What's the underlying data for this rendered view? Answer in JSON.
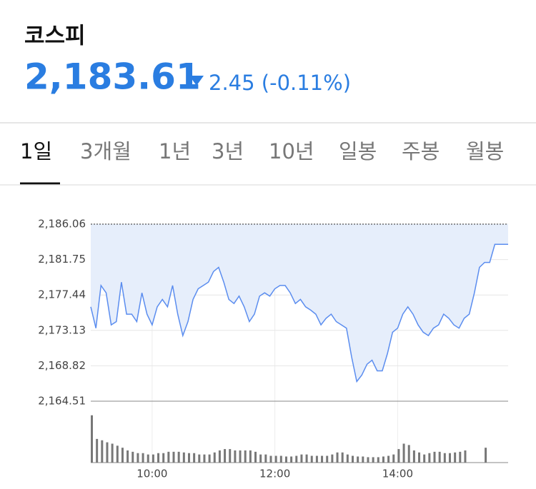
{
  "header": {
    "title": "코스피",
    "price": "2,183.61",
    "change": "2.45 (-0.11%)"
  },
  "tabs": [
    "1일",
    "3개월",
    "1년",
    "3년",
    "10년",
    "일봉",
    "주봉",
    "월봉"
  ],
  "chart_data": [
    {
      "type": "line",
      "x": [
        "09:00",
        "09:05",
        "09:10",
        "09:15",
        "09:20",
        "09:25",
        "09:30",
        "09:35",
        "09:40",
        "09:45",
        "09:50",
        "09:55",
        "10:00",
        "10:05",
        "10:10",
        "10:15",
        "10:20",
        "10:25",
        "10:30",
        "10:35",
        "10:40",
        "10:45",
        "10:50",
        "10:55",
        "11:00",
        "11:05",
        "11:10",
        "11:15",
        "11:20",
        "11:25",
        "11:30",
        "11:35",
        "11:40",
        "11:45",
        "11:50",
        "11:55",
        "12:00",
        "12:05",
        "12:10",
        "12:15",
        "12:20",
        "12:25",
        "12:30",
        "12:35",
        "12:40",
        "12:45",
        "12:50",
        "12:55",
        "13:00",
        "13:05",
        "13:10",
        "13:15",
        "13:20",
        "13:25",
        "13:30",
        "13:35",
        "13:40",
        "13:45",
        "13:50",
        "13:55",
        "14:00",
        "14:05",
        "14:10",
        "14:15",
        "14:20",
        "14:25",
        "14:30",
        "14:35",
        "14:40",
        "14:45",
        "14:50",
        "14:55",
        "15:00",
        "15:05",
        "15:10",
        "15:15",
        "15:20",
        "15:25",
        "15:30",
        "15:35",
        "15:40",
        "15:45",
        "15:48"
      ],
      "series": [
        {
          "color": "#5b8def",
          "values": [
            2176.0,
            2173.4,
            2178.6,
            2177.7,
            2173.8,
            2174.2,
            2179.0,
            2175.1,
            2175.1,
            2174.2,
            2177.7,
            2175.1,
            2173.8,
            2176.0,
            2176.9,
            2176.0,
            2178.6,
            2175.1,
            2172.5,
            2174.2,
            2176.9,
            2178.2,
            2178.6,
            2179.0,
            2180.3,
            2180.8,
            2179.0,
            2176.9,
            2176.4,
            2177.3,
            2176.0,
            2174.2,
            2175.1,
            2177.3,
            2177.7,
            2177.3,
            2178.2,
            2178.6,
            2178.6,
            2177.7,
            2176.4,
            2176.9,
            2176.0,
            2175.6,
            2175.1,
            2173.8,
            2174.6,
            2175.1,
            2174.2,
            2173.8,
            2173.4,
            2169.9,
            2166.9,
            2167.7,
            2169.0,
            2169.5,
            2168.2,
            2168.2,
            2170.3,
            2172.9,
            2173.4,
            2175.1,
            2176.0,
            2175.1,
            2173.8,
            2172.9,
            2172.5,
            2173.4,
            2173.8,
            2175.1,
            2174.6,
            2173.8,
            2173.4,
            2174.6,
            2175.1,
            2177.7,
            2180.8,
            2181.4,
            2181.4,
            2183.6,
            2183.6,
            2183.6,
            2183.61
          ]
        }
      ],
      "area_color": "#e6eefb",
      "reference": 2186.06,
      "xlim": [
        "09:00",
        "15:48"
      ],
      "xticks": [
        "10:00",
        "12:00",
        "14:00"
      ],
      "ylim": [
        2164.51,
        2186.06
      ],
      "yticks": [
        {
          "value": 2186.06,
          "label": "2,186.06"
        },
        {
          "value": 2181.75,
          "label": "2,181.75"
        },
        {
          "value": 2177.44,
          "label": "2,177.44"
        },
        {
          "value": 2173.13,
          "label": "2,173.13"
        },
        {
          "value": 2168.82,
          "label": "2,168.82"
        },
        {
          "value": 2164.51,
          "label": "2,164.51"
        }
      ],
      "grid": true
    },
    {
      "type": "bar",
      "x": [
        "09:00",
        "09:05",
        "09:10",
        "09:15",
        "09:20",
        "09:25",
        "09:30",
        "09:35",
        "09:40",
        "09:45",
        "09:50",
        "09:55",
        "10:00",
        "10:05",
        "10:10",
        "10:15",
        "10:20",
        "10:25",
        "10:30",
        "10:35",
        "10:40",
        "10:45",
        "10:50",
        "10:55",
        "11:00",
        "11:05",
        "11:10",
        "11:15",
        "11:20",
        "11:25",
        "11:30",
        "11:35",
        "11:40",
        "11:45",
        "11:50",
        "11:55",
        "12:00",
        "12:05",
        "12:10",
        "12:15",
        "12:20",
        "12:25",
        "12:30",
        "12:35",
        "12:40",
        "12:45",
        "12:50",
        "12:55",
        "13:00",
        "13:05",
        "13:10",
        "13:15",
        "13:20",
        "13:25",
        "13:30",
        "13:35",
        "13:40",
        "13:45",
        "13:50",
        "13:55",
        "14:00",
        "14:05",
        "14:10",
        "14:15",
        "14:20",
        "14:25",
        "14:30",
        "14:35",
        "14:40",
        "14:45",
        "14:50",
        "14:55",
        "15:00",
        "15:05",
        "15:10",
        "15:15",
        "15:20",
        "15:25",
        "15:30"
      ],
      "values": [
        70,
        35,
        33,
        30,
        28,
        25,
        22,
        18,
        16,
        14,
        14,
        12,
        12,
        14,
        14,
        16,
        16,
        16,
        15,
        14,
        14,
        12,
        12,
        12,
        15,
        18,
        20,
        20,
        18,
        18,
        18,
        18,
        16,
        12,
        12,
        10,
        10,
        10,
        9,
        9,
        10,
        12,
        12,
        10,
        10,
        10,
        10,
        12,
        15,
        15,
        12,
        10,
        9,
        9,
        8,
        8,
        8,
        9,
        10,
        12,
        20,
        28,
        26,
        18,
        15,
        12,
        14,
        16,
        16,
        14,
        14,
        15,
        16,
        18,
        null,
        null,
        null,
        22,
        null
      ],
      "color": "#777777",
      "ylim": [
        0,
        75
      ]
    }
  ]
}
